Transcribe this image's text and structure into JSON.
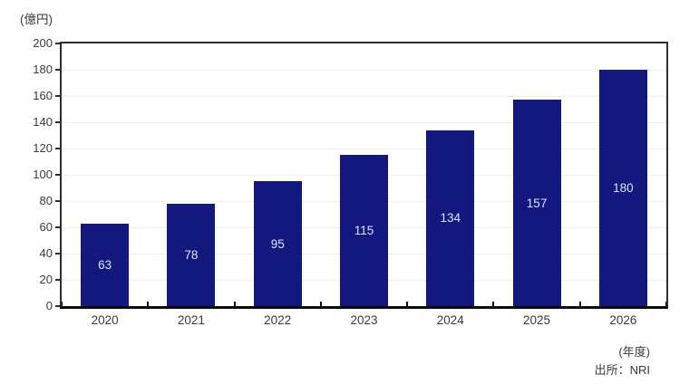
{
  "figure": {
    "unit_label": "(億円)",
    "xaxis_unit_label": "(年度)",
    "source_label": "出所：NRI"
  },
  "chart_data": {
    "type": "bar",
    "categories": [
      "2020",
      "2021",
      "2022",
      "2023",
      "2024",
      "2025",
      "2026"
    ],
    "values": [
      63,
      78,
      95,
      115,
      134,
      157,
      180
    ],
    "title": "",
    "xlabel": "(年度)",
    "ylabel": "(億円)",
    "ylim": [
      0,
      200
    ],
    "ytick_step": 20,
    "grid": true,
    "legend": "none",
    "value_labels_shown": true,
    "colors": {
      "bar": "#12187d",
      "value_label": "#dce3f7",
      "axis_frame": "#2e2e2e",
      "bottom_axis": "#0b0b0b",
      "gridline": "#efefef",
      "text": "#3a3a3a"
    }
  }
}
